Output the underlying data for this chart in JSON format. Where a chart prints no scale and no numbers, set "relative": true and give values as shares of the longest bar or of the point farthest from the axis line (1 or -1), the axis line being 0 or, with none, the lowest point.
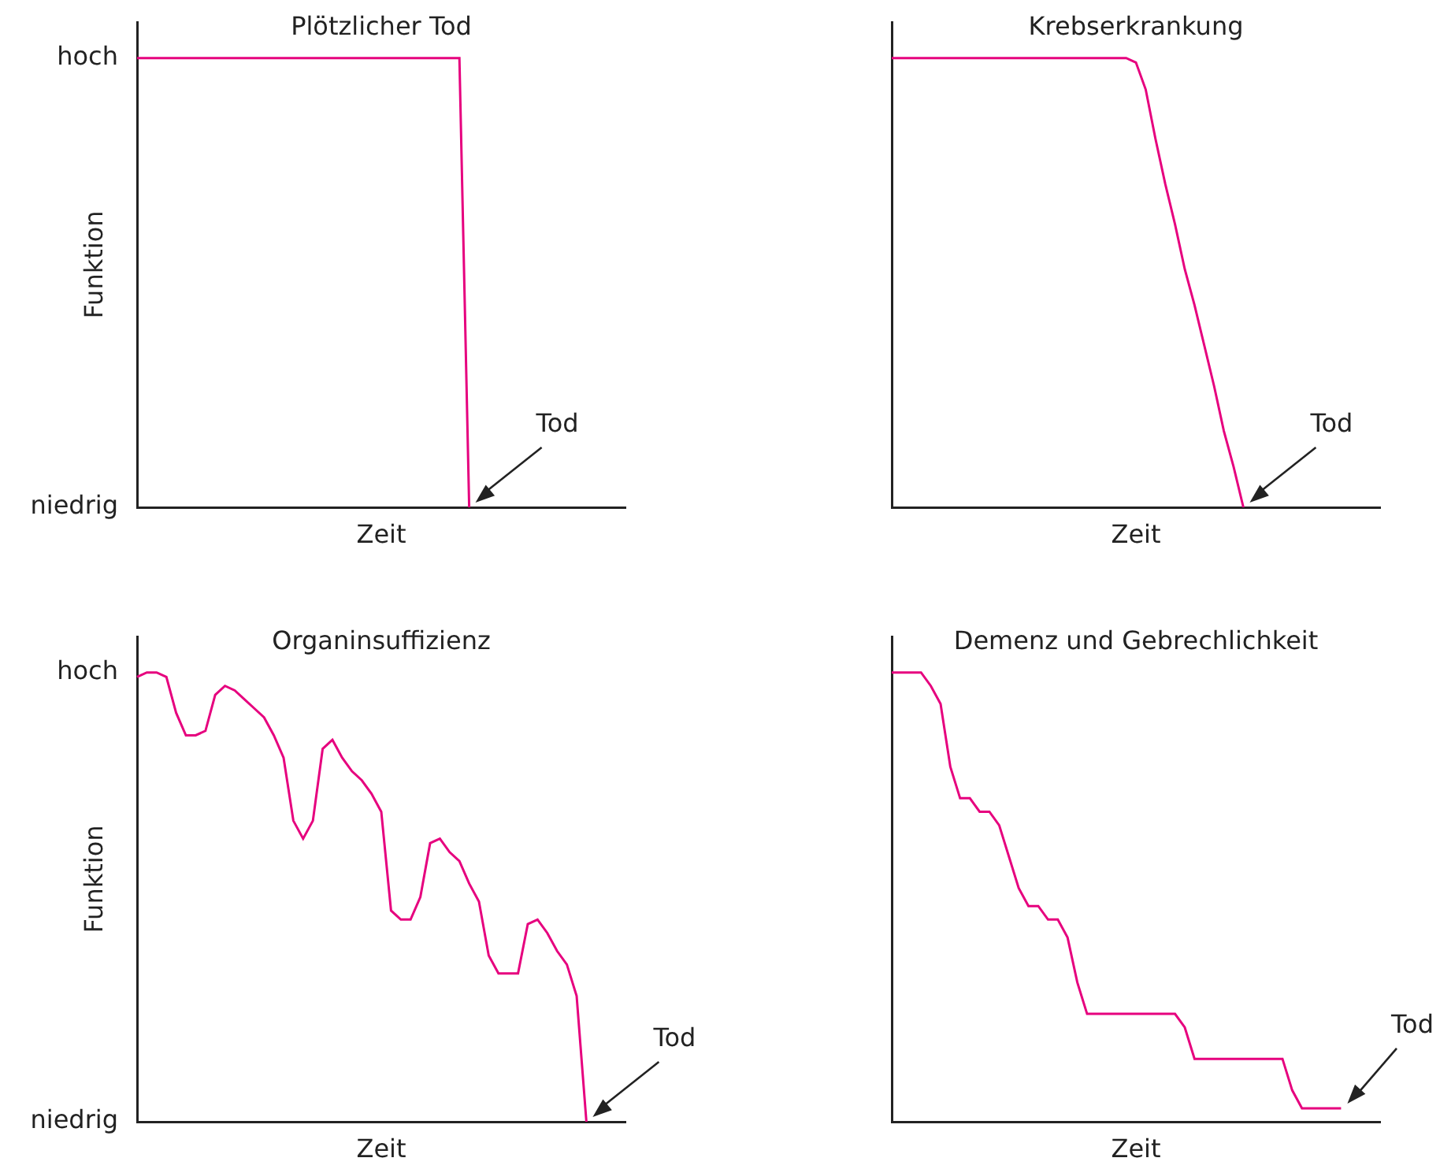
{
  "chart_data": [
    {
      "type": "line",
      "title": "Plötzlicher Tod",
      "xlabel": "Zeit",
      "ylabel": "Funktion",
      "marker": "none",
      "relative": true,
      "categories": [
        null,
        null,
        null,
        null,
        null,
        null,
        null,
        null,
        null,
        null,
        null,
        null,
        null,
        null,
        null,
        null,
        null,
        null,
        null,
        null,
        null,
        null,
        null,
        null,
        null,
        null,
        null,
        null,
        null,
        null,
        null,
        null,
        null,
        null,
        null,
        null,
        null,
        null,
        null,
        null,
        null,
        null,
        null,
        null,
        null,
        null,
        null,
        null,
        null,
        null,
        null
      ],
      "series": [
        {
          "color": "#e6007e",
          "values": [
            1,
            1,
            1,
            1,
            1,
            1,
            1,
            1,
            1,
            1,
            1,
            1,
            1,
            1,
            1,
            1,
            1,
            1,
            1,
            1,
            1,
            1,
            1,
            1,
            1,
            1,
            1,
            1,
            1,
            1,
            1,
            1,
            1,
            1,
            0,
            null,
            null,
            null,
            null,
            null,
            null,
            null,
            null,
            null,
            null,
            null,
            null,
            null,
            null,
            null,
            null
          ]
        }
      ],
      "annotations": [
        "hoch",
        "niedrig",
        "Tod"
      ]
    },
    {
      "type": "line",
      "title": "Krebserkrankung",
      "xlabel": "Zeit",
      "marker": "none",
      "relative": true,
      "categories": [
        null,
        null,
        null,
        null,
        null,
        null,
        null,
        null,
        null,
        null,
        null,
        null,
        null,
        null,
        null,
        null,
        null,
        null,
        null,
        null,
        null,
        null,
        null,
        null,
        null,
        null,
        null,
        null,
        null,
        null,
        null,
        null,
        null,
        null,
        null,
        null,
        null,
        null,
        null,
        null,
        null,
        null,
        null,
        null,
        null,
        null,
        null,
        null,
        null,
        null,
        null
      ],
      "series": [
        {
          "color": "#e6007e",
          "values": [
            1,
            1,
            1,
            1,
            1,
            1,
            1,
            1,
            1,
            1,
            1,
            1,
            1,
            1,
            1,
            1,
            1,
            1,
            1,
            1,
            1,
            1,
            1,
            1,
            1,
            0.99,
            0.93,
            0.82,
            0.72,
            0.63,
            0.53,
            0.45,
            0.36,
            0.27,
            0.17,
            0.09,
            0,
            null,
            null,
            null,
            null,
            null,
            null,
            null,
            null,
            null,
            null,
            null,
            null,
            null,
            null
          ]
        }
      ],
      "annotations": [
        "Tod"
      ]
    },
    {
      "type": "line",
      "title": "Organinsuffizienz",
      "xlabel": "Zeit",
      "ylabel": "Funktion",
      "marker": "none",
      "relative": true,
      "categories": [
        null,
        null,
        null,
        null,
        null,
        null,
        null,
        null,
        null,
        null,
        null,
        null,
        null,
        null,
        null,
        null,
        null,
        null,
        null,
        null,
        null,
        null,
        null,
        null,
        null,
        null,
        null,
        null,
        null,
        null,
        null,
        null,
        null,
        null,
        null,
        null,
        null,
        null,
        null,
        null,
        null,
        null,
        null,
        null,
        null,
        null,
        null,
        null,
        null,
        null,
        null
      ],
      "series": [
        {
          "color": "#e6007e",
          "values": [
            0.99,
            1,
            1,
            0.99,
            0.91,
            0.86,
            0.86,
            0.87,
            0.95,
            0.97,
            0.96,
            0.94,
            0.92,
            0.9,
            0.86,
            0.81,
            0.67,
            0.63,
            0.67,
            0.83,
            0.85,
            0.81,
            0.78,
            0.76,
            0.73,
            0.69,
            0.47,
            0.45,
            0.45,
            0.5,
            0.62,
            0.63,
            0.6,
            0.58,
            0.53,
            0.49,
            0.37,
            0.33,
            0.33,
            0.33,
            0.44,
            0.45,
            0.42,
            0.38,
            0.35,
            0.28,
            0,
            null,
            null,
            null,
            null
          ]
        }
      ],
      "annotations": [
        "hoch",
        "niedrig",
        "Tod"
      ]
    },
    {
      "type": "line",
      "title": "Demenz und Gebrechlichkeit",
      "xlabel": "Zeit",
      "marker": "none",
      "relative": true,
      "categories": [
        null,
        null,
        null,
        null,
        null,
        null,
        null,
        null,
        null,
        null,
        null,
        null,
        null,
        null,
        null,
        null,
        null,
        null,
        null,
        null,
        null,
        null,
        null,
        null,
        null,
        null,
        null,
        null,
        null,
        null,
        null,
        null,
        null,
        null,
        null,
        null,
        null,
        null,
        null,
        null,
        null,
        null,
        null,
        null,
        null,
        null,
        null,
        null,
        null,
        null,
        null
      ],
      "series": [
        {
          "color": "#e6007e",
          "values": [
            1,
            1,
            1,
            1,
            0.97,
            0.93,
            0.79,
            0.72,
            0.72,
            0.69,
            0.69,
            0.66,
            0.59,
            0.52,
            0.48,
            0.48,
            0.45,
            0.45,
            0.41,
            0.31,
            0.24,
            0.24,
            0.24,
            0.24,
            0.24,
            0.24,
            0.24,
            0.24,
            0.24,
            0.24,
            0.21,
            0.14,
            0.14,
            0.14,
            0.14,
            0.14,
            0.14,
            0.14,
            0.14,
            0.14,
            0.14,
            0.07,
            0.03,
            0.03,
            0.03,
            0.03,
            0.03,
            null,
            null,
            null,
            null
          ]
        }
      ],
      "annotations": [
        "Tod"
      ]
    }
  ]
}
